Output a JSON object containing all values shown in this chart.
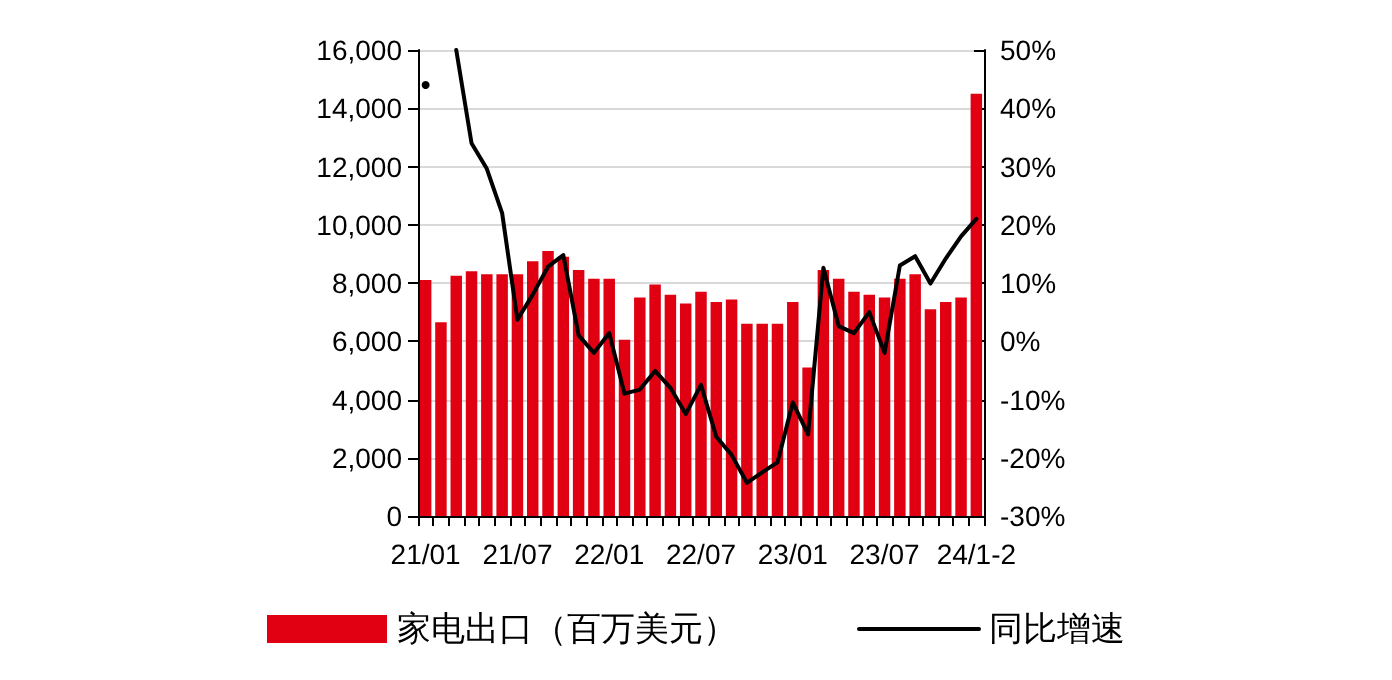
{
  "chart_data": {
    "type": "bar",
    "categories": [
      "21/01",
      null,
      null,
      null,
      null,
      null,
      "21/07",
      null,
      null,
      null,
      null,
      null,
      "22/01",
      null,
      null,
      null,
      null,
      null,
      "22/07",
      null,
      null,
      null,
      null,
      null,
      "23/01",
      null,
      null,
      null,
      null,
      null,
      "23/07",
      null,
      null,
      null,
      null,
      null,
      "24/1-2"
    ],
    "series": [
      {
        "name": "家电出口（百万美元）",
        "color": "#e00012",
        "values": [
          8100,
          6650,
          8250,
          8400,
          8300,
          8300,
          8300,
          8750,
          9100,
          8900,
          8450,
          8150,
          8150,
          6050,
          7500,
          7950,
          7600,
          7300,
          7700,
          7350,
          7430,
          6600,
          6600,
          6600,
          7350,
          5100,
          8450,
          8150,
          7700,
          7600,
          7500,
          8150,
          8300,
          7100,
          7350,
          7500,
          14500
        ]
      },
      {
        "name": "同比增速",
        "type": "line",
        "axis": "y2",
        "color": "#000000",
        "values": [
          44,
          null,
          50,
          34,
          29.6,
          22,
          3.7,
          8,
          12.8,
          14.8,
          1,
          -2,
          1.4,
          -9,
          -8.3,
          -5.1,
          -8,
          -12.5,
          -7.5,
          -16.4,
          -19.5,
          -24.3,
          -22.5,
          -20.8,
          -10.5,
          -16,
          12.6,
          2.6,
          1.4,
          5,
          -2,
          13,
          14.6,
          9.9,
          14.2,
          18,
          21
        ]
      }
    ],
    "ylim": [
      0,
      16000
    ],
    "yticks": [
      0,
      {
        "value": 2000,
        "label": "2,000"
      },
      {
        "value": 4000,
        "label": "4,000"
      },
      {
        "value": 6000,
        "label": "6,000"
      },
      {
        "value": 8000,
        "label": "8,000"
      },
      {
        "value": 10000,
        "label": "10,000"
      },
      {
        "value": 12000,
        "label": "12,000"
      },
      {
        "value": 14000,
        "label": "14,000"
      },
      {
        "value": 16000,
        "label": "16,000"
      }
    ],
    "y2lim": [
      -30,
      50
    ],
    "y2ticks": [
      {
        "value": -30,
        "label": "-30%"
      },
      {
        "value": -20,
        "label": "-20%"
      },
      {
        "value": -10,
        "label": "-10%"
      },
      {
        "value": 0,
        "label": "0%"
      },
      {
        "value": 10,
        "label": "10%"
      },
      {
        "value": 20,
        "label": "20%"
      },
      {
        "value": 30,
        "label": "30%"
      },
      {
        "value": 40,
        "label": "40%"
      },
      {
        "value": 50,
        "label": "50%"
      }
    ],
    "grid": "y",
    "legend": "bottom",
    "marker": "none",
    "line_style": "solid"
  }
}
